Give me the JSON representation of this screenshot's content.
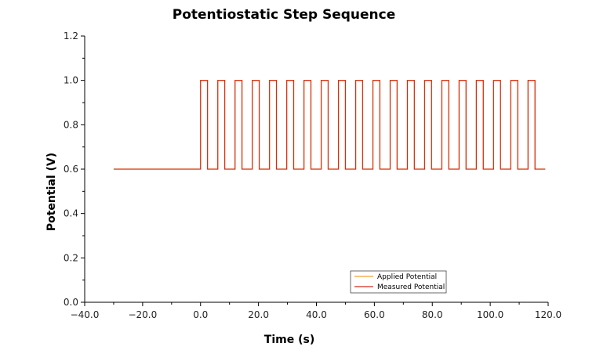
{
  "chart_data": {
    "type": "line",
    "title": "Potentiostatic Step Sequence",
    "xlabel": "Time (s)",
    "ylabel": "Potential (V)",
    "xlim": [
      -40,
      120
    ],
    "ylim": [
      0,
      1.2
    ],
    "x_ticks": [
      -40,
      -20,
      0,
      20,
      40,
      60,
      80,
      100,
      120
    ],
    "x_tick_labels": [
      "−40.0",
      "−20.0",
      "0.0",
      "20.0",
      "40.0",
      "60.0",
      "80.0",
      "100.0",
      "120.0"
    ],
    "y_ticks": [
      0,
      0.2,
      0.4,
      0.6,
      0.8,
      1.0,
      1.2
    ],
    "y_tick_labels": [
      "0.0",
      "0.2",
      "0.4",
      "0.6",
      "0.8",
      "1.0",
      "1.2"
    ],
    "grid": false,
    "legend_position": "bottom-center",
    "series": [
      {
        "name": "Applied Potential",
        "color": "#f0a030",
        "style": "step",
        "pre_step": {
          "x_start": -30,
          "x_end": 0,
          "value": 0.6
        },
        "pulse_count": 20,
        "pulse_start": 0,
        "pulse_period": 5.95,
        "high_duration": 2.4,
        "high_value": 1.0,
        "low_value": 0.6,
        "x_end": 119
      },
      {
        "name": "Measured Potential",
        "color": "#d42a1e",
        "style": "step",
        "pre_step": {
          "x_start": -30,
          "x_end": 0,
          "value": 0.6
        },
        "pulse_count": 20,
        "pulse_start": 0,
        "pulse_period": 5.95,
        "high_duration": 2.4,
        "high_value": 1.0,
        "low_value": 0.6,
        "x_end": 119
      }
    ]
  }
}
